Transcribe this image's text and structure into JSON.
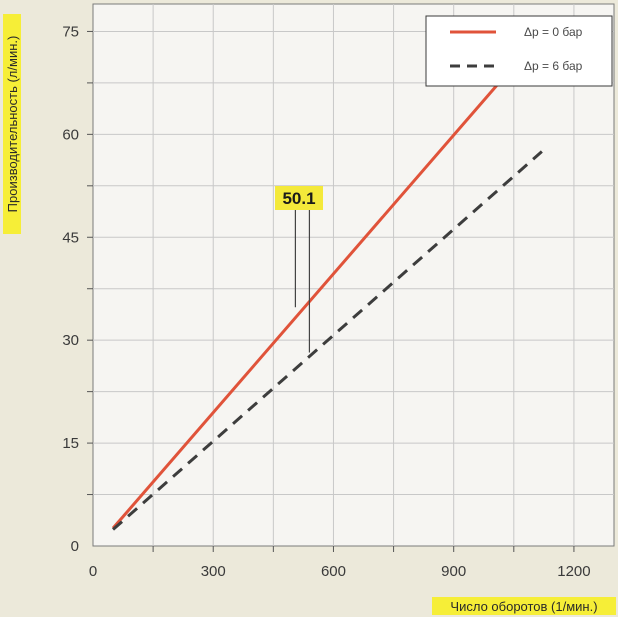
{
  "chart_data": {
    "type": "line",
    "xlabel": "Число оборотов (1/мин.)",
    "ylabel": "Производительность (л/мин.)",
    "xlim": [
      0,
      1300
    ],
    "ylim": [
      0,
      79
    ],
    "x_ticks": [
      0,
      300,
      600,
      900,
      1200
    ],
    "y_ticks": [
      0,
      15,
      30,
      45,
      60,
      75
    ],
    "x_minor_step": 150,
    "y_minor_step": 7.5,
    "grid": true,
    "legend_position": "top-right",
    "series": [
      {
        "name": "Δp = 0 бар",
        "style": "solid",
        "color": "#e0533a",
        "x": [
          50,
          1050
        ],
        "y": [
          2.6,
          70
        ]
      },
      {
        "name": "Δp = 6 бар",
        "style": "dashed",
        "color": "#3d3d3d",
        "x": [
          50,
          1120
        ],
        "y": [
          2.4,
          57.5
        ]
      }
    ],
    "annotation": {
      "text": "50.1",
      "color": "#f4e93a",
      "points": [
        {
          "x": 505,
          "y": 34.8
        },
        {
          "x": 540,
          "y": 28.2
        }
      ]
    }
  },
  "colors": {
    "background": "#ece9da",
    "plot_background": "#f6f5f2",
    "highlight": "#f6ee37",
    "grid": "#c8c8c8"
  }
}
